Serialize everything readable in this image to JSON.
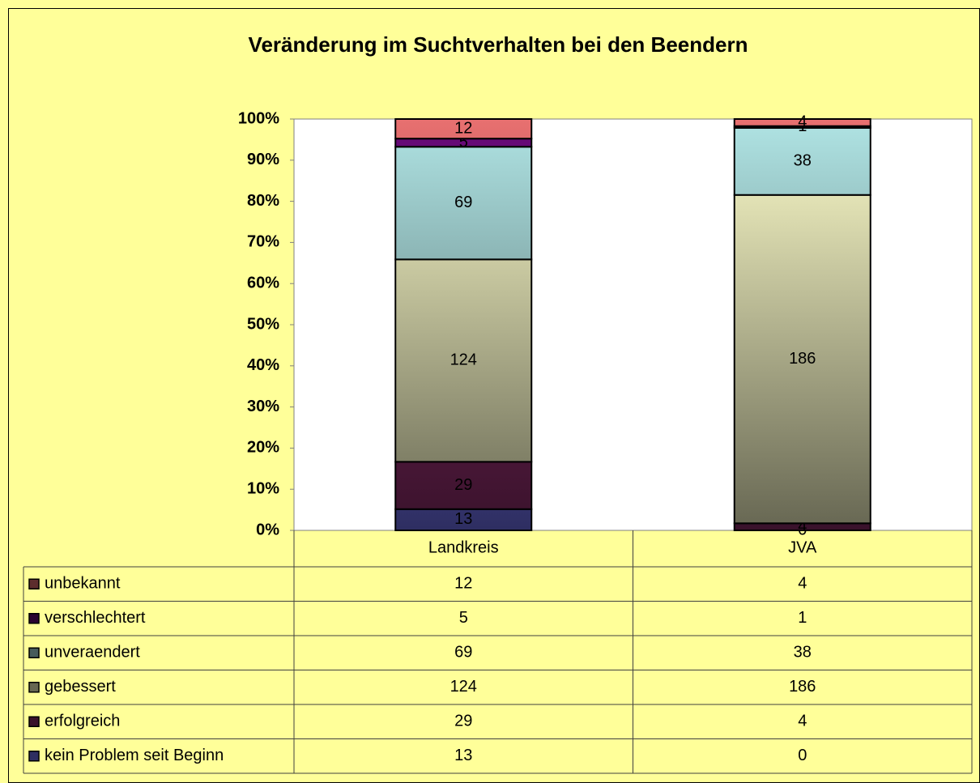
{
  "chart_data": {
    "type": "bar",
    "stacking": "percent",
    "title": "Veränderung im Suchtverhalten bei den Beendern",
    "categories": [
      "Landkreis",
      "JVA"
    ],
    "series": [
      {
        "name": "kein Problem seit Beginn",
        "color": "#7272f2",
        "values": [
          13,
          0
        ]
      },
      {
        "name": "erfolgreich",
        "color": "#8e2d6c",
        "values": [
          29,
          4
        ]
      },
      {
        "name": "gebessert",
        "color": "#ffffcc",
        "values": [
          124,
          186
        ]
      },
      {
        "name": "unveraendert",
        "color": "#b0e4e4",
        "values": [
          69,
          38
        ]
      },
      {
        "name": "verschlechtert",
        "color": "#6a0a7a",
        "values": [
          5,
          1
        ]
      },
      {
        "name": "unbekannt",
        "color": "#e87070",
        "values": [
          12,
          4
        ]
      }
    ],
    "ylim": [
      0,
      100
    ],
    "yticks": [
      {
        "value": 0,
        "label": "0%"
      },
      {
        "value": 10,
        "label": "10%"
      },
      {
        "value": 20,
        "label": "20%"
      },
      {
        "value": 30,
        "label": "30%"
      },
      {
        "value": 40,
        "label": "40%"
      },
      {
        "value": 50,
        "label": "50%"
      },
      {
        "value": 60,
        "label": "60%"
      },
      {
        "value": 70,
        "label": "70%"
      },
      {
        "value": 80,
        "label": "80%"
      },
      {
        "value": 90,
        "label": "90%"
      },
      {
        "value": 100,
        "label": "100%"
      }
    ],
    "grid": false,
    "data_table": true
  }
}
